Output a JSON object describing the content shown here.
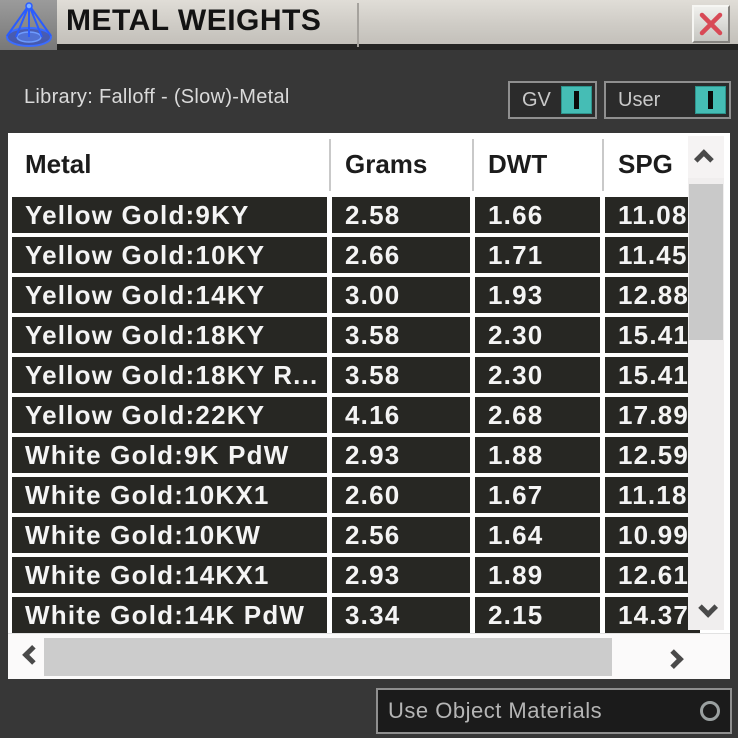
{
  "window": {
    "title": "METAL WEIGHTS"
  },
  "header": {
    "library_label": "Library: Falloff - (Slow)-Metal"
  },
  "toggles": {
    "gv_label": "GV",
    "user_label": "User",
    "accent_color": "#45bdb5",
    "state": "on"
  },
  "table": {
    "columns": [
      "Metal",
      "Grams",
      "DWT",
      "SPG"
    ],
    "rows": [
      {
        "metal": "Yellow Gold:9KY",
        "grams": "2.58",
        "dwt": "1.66",
        "spg": "11.08"
      },
      {
        "metal": "Yellow Gold:10KY",
        "grams": "2.66",
        "dwt": "1.71",
        "spg": "11.45"
      },
      {
        "metal": "Yellow Gold:14KY",
        "grams": "3.00",
        "dwt": "1.93",
        "spg": "12.88"
      },
      {
        "metal": "Yellow Gold:18KY",
        "grams": "3.58",
        "dwt": "2.30",
        "spg": "15.41"
      },
      {
        "metal": "Yellow Gold:18KY R...",
        "grams": "3.58",
        "dwt": "2.30",
        "spg": "15.41"
      },
      {
        "metal": "Yellow Gold:22KY",
        "grams": "4.16",
        "dwt": "2.68",
        "spg": "17.89"
      },
      {
        "metal": "White Gold:9K PdW",
        "grams": "2.93",
        "dwt": "1.88",
        "spg": "12.59"
      },
      {
        "metal": "White Gold:10KX1",
        "grams": "2.60",
        "dwt": "1.67",
        "spg": "11.18"
      },
      {
        "metal": "White Gold:10KW",
        "grams": "2.56",
        "dwt": "1.64",
        "spg": "10.99"
      },
      {
        "metal": "White Gold:14KX1",
        "grams": "2.93",
        "dwt": "1.89",
        "spg": "12.61"
      },
      {
        "metal": "White Gold:14K PdW",
        "grams": "3.34",
        "dwt": "2.15",
        "spg": "14.37"
      }
    ]
  },
  "footer": {
    "dropdown_label": "Use Object Materials"
  },
  "colors": {
    "body_bg": "#373737",
    "titlebar_bg": "#cfccc6",
    "cell_bg": "#272723",
    "cell_text": "#f4f4f4",
    "close_x": "#d84a56",
    "icon_blue": "#2a5cff"
  }
}
